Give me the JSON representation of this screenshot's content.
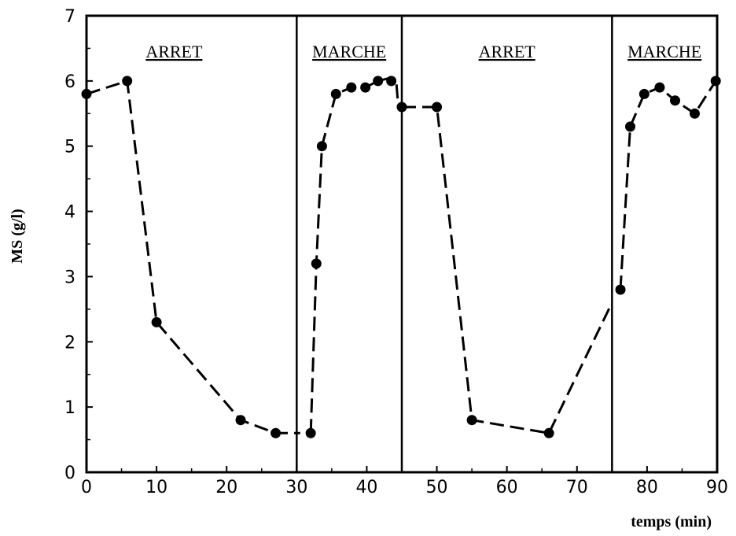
{
  "chart_data": {
    "type": "line",
    "xlabel": "temps (min)",
    "ylabel": "MS (g/l)",
    "xlim": [
      0,
      90
    ],
    "ylim": [
      0,
      7
    ],
    "xticks": [
      0,
      10,
      20,
      30,
      40,
      50,
      60,
      70,
      80,
      90
    ],
    "yticks": [
      0,
      1,
      2,
      3,
      4,
      5,
      6,
      7
    ],
    "grid": false,
    "line_style": "dashed",
    "marker": "filled-circle",
    "phase_boundaries": [
      30,
      45,
      75
    ],
    "phases": [
      {
        "label": "ARRET",
        "x_center": 12.5
      },
      {
        "label": "MARCHE",
        "x_center": 37.5
      },
      {
        "label": "ARRET",
        "x_center": 60
      },
      {
        "label": "MARCHE",
        "x_center": 82.5
      }
    ],
    "segments": [
      {
        "points": [
          [
            0,
            5.8
          ],
          [
            5.8,
            6.0
          ],
          [
            10,
            2.3
          ],
          [
            22,
            0.8
          ],
          [
            27,
            0.6
          ],
          [
            30.5,
            0.6
          ]
        ],
        "markers": [
          [
            0,
            5.8
          ],
          [
            5.8,
            6.0
          ],
          [
            10,
            2.3
          ],
          [
            22,
            0.8
          ],
          [
            27,
            0.6
          ]
        ]
      },
      {
        "points": [
          [
            32,
            0.6
          ],
          [
            32.8,
            3.2
          ],
          [
            33.6,
            5.0
          ],
          [
            35.6,
            5.8
          ],
          [
            37.8,
            5.9
          ],
          [
            39.8,
            5.9
          ],
          [
            41.6,
            6.0
          ],
          [
            43.5,
            6.05
          ],
          [
            44.2,
            6.0
          ],
          [
            44.5,
            5.6
          ]
        ],
        "markers": [
          [
            32,
            0.6
          ],
          [
            32.8,
            3.2
          ],
          [
            33.6,
            5.0
          ],
          [
            35.6,
            5.8
          ],
          [
            37.8,
            5.9
          ],
          [
            39.8,
            5.9
          ],
          [
            41.6,
            6.0
          ],
          [
            43.5,
            6.0
          ]
        ]
      },
      {
        "points": [
          [
            45,
            5.6
          ],
          [
            50,
            5.6
          ],
          [
            55,
            0.8
          ],
          [
            66,
            0.6
          ],
          [
            75,
            2.6
          ]
        ],
        "markers": [
          [
            45,
            5.6
          ],
          [
            50,
            5.6
          ],
          [
            55,
            0.8
          ],
          [
            66,
            0.6
          ]
        ]
      },
      {
        "points": [
          [
            76.2,
            2.8
          ],
          [
            77.6,
            5.3
          ],
          [
            79.6,
            5.8
          ],
          [
            81.8,
            5.9
          ],
          [
            84,
            5.7
          ],
          [
            86.8,
            5.5
          ],
          [
            89.8,
            6.0
          ]
        ],
        "markers": [
          [
            76.2,
            2.8
          ],
          [
            77.6,
            5.3
          ],
          [
            79.6,
            5.8
          ],
          [
            81.8,
            5.9
          ],
          [
            84,
            5.7
          ],
          [
            86.8,
            5.5
          ],
          [
            89.8,
            6.0
          ]
        ]
      }
    ]
  }
}
